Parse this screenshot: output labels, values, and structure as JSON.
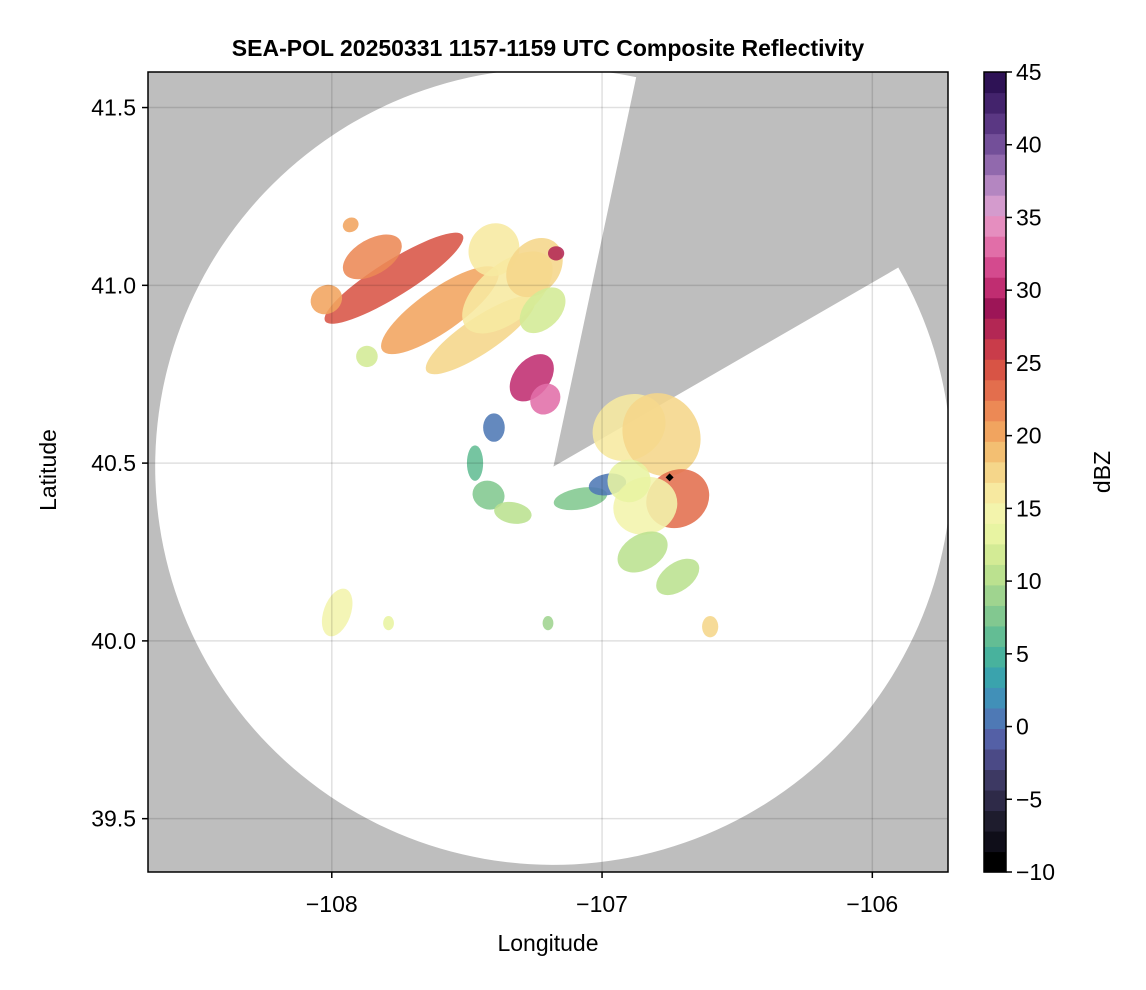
{
  "chart_data": {
    "type": "heatmap",
    "title": "SEA-POL 20250331 1157-1159 UTC Composite Reflectivity",
    "xlabel": "Longitude",
    "ylabel": "Latitude",
    "xlim": [
      -108.68,
      -105.72
    ],
    "ylim": [
      39.35,
      41.6
    ],
    "xticks": [
      -108,
      -107,
      -106
    ],
    "xtick_labels": [
      "−108",
      "−107",
      "−106"
    ],
    "yticks": [
      39.5,
      40.0,
      40.5,
      41.0,
      41.5
    ],
    "ytick_labels": [
      "39.5",
      "40.0",
      "40.5",
      "41.0",
      "41.5"
    ],
    "grid": true,
    "colorbar": {
      "label": "dBZ",
      "range": [
        -10,
        45
      ],
      "ticks": [
        -10,
        -5,
        0,
        5,
        10,
        15,
        20,
        25,
        30,
        35,
        40,
        45
      ],
      "tick_labels": [
        "−10",
        "−5",
        "0",
        "5",
        "10",
        "15",
        "20",
        "25",
        "30",
        "35",
        "40",
        "45"
      ],
      "colors": [
        "#000000",
        "#0f0e19",
        "#1e1c2d",
        "#2e2a48",
        "#3d3963",
        "#4b4a86",
        "#5460a6",
        "#4e79b5",
        "#4190b8",
        "#3aa3ad",
        "#48b29d",
        "#63bd94",
        "#82c890",
        "#9fd48f",
        "#bbe18f",
        "#d3eb95",
        "#e8f4a2",
        "#f3f4ac",
        "#f7e9a0",
        "#f5d68a",
        "#f3bf72",
        "#f1a45f",
        "#ec8955",
        "#e36e4d",
        "#d85445",
        "#c93c4a",
        "#b32754",
        "#9d1557",
        "#c02d71",
        "#d44a8e",
        "#e16ea8",
        "#e58ebf",
        "#d49bcd",
        "#b486c1",
        "#9169ad",
        "#734f99",
        "#5a3783",
        "#43236c",
        "#2e1255"
      ]
    },
    "radar_site": {
      "lon": -107.18,
      "lat": 40.49
    },
    "radar_range_deg_lat": 1.12,
    "blocked_sectors": [
      {
        "az_start": 12,
        "az_end": 60
      }
    ],
    "echo_cells": [
      {
        "lon": -107.77,
        "lat": 41.02,
        "dlon": 0.3,
        "dlat": 0.05,
        "rot": -32,
        "dbz": 25
      },
      {
        "lon": -107.85,
        "lat": 41.08,
        "dlon": 0.12,
        "dlat": 0.05,
        "rot": -30,
        "dbz": 22
      },
      {
        "lon": -107.6,
        "lat": 40.93,
        "dlon": 0.26,
        "dlat": 0.06,
        "rot": -35,
        "dbz": 21
      },
      {
        "lon": -107.45,
        "lat": 40.86,
        "dlon": 0.24,
        "dlat": 0.05,
        "rot": -34,
        "dbz": 17
      },
      {
        "lon": -107.35,
        "lat": 40.98,
        "dlon": 0.2,
        "dlat": 0.08,
        "rot": -40,
        "dbz": 16
      },
      {
        "lon": -107.4,
        "lat": 41.1,
        "dlon": 0.1,
        "dlat": 0.07,
        "rot": -60,
        "dbz": 16
      },
      {
        "lon": -107.25,
        "lat": 41.05,
        "dlon": 0.12,
        "dlat": 0.07,
        "rot": -50,
        "dbz": 18
      },
      {
        "lon": -107.22,
        "lat": 40.93,
        "dlon": 0.1,
        "dlat": 0.05,
        "rot": -45,
        "dbz": 12
      },
      {
        "lon": -107.26,
        "lat": 40.74,
        "dlon": 0.1,
        "dlat": 0.05,
        "rot": -50,
        "dbz": 30
      },
      {
        "lon": -107.21,
        "lat": 40.68,
        "dlon": 0.06,
        "dlat": 0.04,
        "rot": -50,
        "dbz": 33
      },
      {
        "lon": -107.17,
        "lat": 41.09,
        "dlon": 0.03,
        "dlat": 0.02,
        "rot": 0,
        "dbz": 27
      },
      {
        "lon": -108.02,
        "lat": 40.96,
        "dlon": 0.06,
        "dlat": 0.04,
        "rot": -30,
        "dbz": 20
      },
      {
        "lon": -107.93,
        "lat": 41.17,
        "dlon": 0.03,
        "dlat": 0.02,
        "rot": -30,
        "dbz": 20
      },
      {
        "lon": -107.87,
        "lat": 40.8,
        "dlon": 0.04,
        "dlat": 0.03,
        "rot": 0,
        "dbz": 12
      },
      {
        "lon": -107.4,
        "lat": 40.6,
        "dlon": 0.04,
        "dlat": 0.04,
        "rot": 0,
        "dbz": 0
      },
      {
        "lon": -107.47,
        "lat": 40.5,
        "dlon": 0.03,
        "dlat": 0.05,
        "rot": 0,
        "dbz": 6
      },
      {
        "lon": -107.42,
        "lat": 40.41,
        "dlon": 0.06,
        "dlat": 0.04,
        "rot": 20,
        "dbz": 7
      },
      {
        "lon": -107.33,
        "lat": 40.36,
        "dlon": 0.07,
        "dlat": 0.03,
        "rot": 10,
        "dbz": 10
      },
      {
        "lon": -107.08,
        "lat": 40.4,
        "dlon": 0.1,
        "dlat": 0.03,
        "rot": -10,
        "dbz": 8
      },
      {
        "lon": -106.98,
        "lat": 40.44,
        "dlon": 0.07,
        "dlat": 0.03,
        "rot": -10,
        "dbz": 0
      },
      {
        "lon": -106.9,
        "lat": 40.6,
        "dlon": 0.14,
        "dlat": 0.09,
        "rot": -30,
        "dbz": 16
      },
      {
        "lon": -106.78,
        "lat": 40.58,
        "dlon": 0.14,
        "dlat": 0.12,
        "rot": -30,
        "dbz": 17
      },
      {
        "lon": -106.72,
        "lat": 40.4,
        "dlon": 0.12,
        "dlat": 0.08,
        "rot": -30,
        "dbz": 23
      },
      {
        "lon": -106.84,
        "lat": 40.38,
        "dlon": 0.12,
        "dlat": 0.08,
        "rot": -20,
        "dbz": 14
      },
      {
        "lon": -106.9,
        "lat": 40.45,
        "dlon": 0.08,
        "dlat": 0.06,
        "rot": -20,
        "dbz": 13
      },
      {
        "lon": -106.85,
        "lat": 40.25,
        "dlon": 0.1,
        "dlat": 0.05,
        "rot": -30,
        "dbz": 11
      },
      {
        "lon": -106.72,
        "lat": 40.18,
        "dlon": 0.09,
        "dlat": 0.04,
        "rot": -35,
        "dbz": 11
      },
      {
        "lon": -106.6,
        "lat": 40.04,
        "dlon": 0.03,
        "dlat": 0.03,
        "rot": 0,
        "dbz": 18
      },
      {
        "lon": -107.98,
        "lat": 40.08,
        "dlon": 0.05,
        "dlat": 0.07,
        "rot": 20,
        "dbz": 14
      },
      {
        "lon": -107.79,
        "lat": 40.05,
        "dlon": 0.02,
        "dlat": 0.02,
        "rot": 0,
        "dbz": 13
      },
      {
        "lon": -107.2,
        "lat": 40.05,
        "dlon": 0.02,
        "dlat": 0.02,
        "rot": 0,
        "dbz": 9
      }
    ],
    "marker": {
      "lon": -106.75,
      "lat": 40.46,
      "shape": "diamond",
      "color": "#000000"
    }
  }
}
